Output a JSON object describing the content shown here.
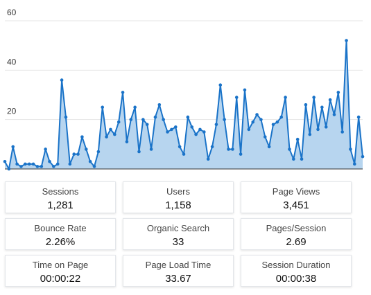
{
  "chart_data": {
    "type": "area",
    "title": "",
    "xlabel": "",
    "ylabel": "",
    "ylim": [
      0,
      60
    ],
    "yticks": [
      20,
      40,
      60
    ],
    "grid": true,
    "legend": "none",
    "colors": {
      "line": "#1a73c8",
      "fill": "#b7d5ef",
      "grid": "#e5e5e5",
      "baseline": "#333333"
    },
    "series": [
      {
        "values": [
          3,
          0,
          9,
          2,
          1,
          2,
          2,
          2,
          1,
          1,
          8,
          3,
          1,
          2,
          36,
          21,
          2,
          6,
          6,
          13,
          8,
          3,
          1,
          7,
          25,
          13,
          16,
          14,
          19,
          31,
          11,
          20,
          25,
          7,
          20,
          18,
          8,
          21,
          26,
          20,
          15,
          16,
          17,
          9,
          6,
          21,
          17,
          14,
          16,
          15,
          4,
          9,
          18,
          34,
          20,
          8,
          8,
          29,
          6,
          32,
          16,
          19,
          22,
          20,
          13,
          9,
          18,
          19,
          21,
          29,
          8,
          4,
          12,
          4,
          26,
          14,
          29,
          16,
          25,
          17,
          28,
          22,
          31,
          15,
          52,
          8,
          2,
          21,
          5
        ]
      }
    ]
  },
  "metrics": [
    {
      "label": "Sessions",
      "value": "1,281"
    },
    {
      "label": "Users",
      "value": "1,158"
    },
    {
      "label": "Page Views",
      "value": "3,451"
    },
    {
      "label": "Bounce Rate",
      "value": "2.26%"
    },
    {
      "label": "Organic Search",
      "value": "33"
    },
    {
      "label": "Pages/Session",
      "value": "2.69"
    },
    {
      "label": "Time on Page",
      "value": "00:00:22"
    },
    {
      "label": "Page Load Time",
      "value": "33.67"
    },
    {
      "label": "Session Duration",
      "value": "00:00:38"
    }
  ]
}
